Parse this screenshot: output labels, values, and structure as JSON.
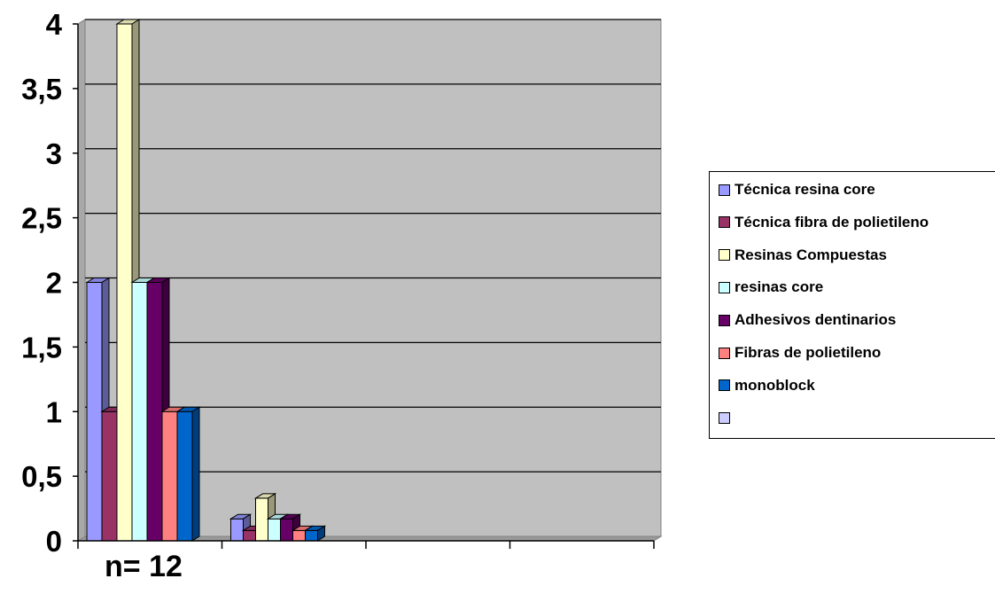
{
  "chart_data": {
    "type": "bar",
    "categories": [
      "",
      "",
      "",
      ""
    ],
    "ylim": [
      0,
      4
    ],
    "yticks": [
      "0",
      "0,5",
      "1",
      "1,5",
      "2",
      "2,5",
      "3",
      "3,5",
      "4"
    ],
    "xlabel": "n= 12",
    "grid": true,
    "legend_position": "right",
    "series": [
      {
        "name": "Técnica resina core",
        "color": "#9999ff",
        "values": [
          2,
          0.17,
          null,
          null
        ]
      },
      {
        "name": "Técnica fibra de polietileno",
        "color": "#993366",
        "values": [
          1,
          0.08,
          null,
          null
        ]
      },
      {
        "name": "Resinas Compuestas",
        "color": "#ffffcc",
        "values": [
          4,
          0.33,
          null,
          null
        ]
      },
      {
        "name": "resinas core",
        "color": "#ccffff",
        "values": [
          2,
          0.17,
          null,
          null
        ]
      },
      {
        "name": "Adhesivos dentinarios",
        "color": "#660066",
        "values": [
          2,
          0.17,
          null,
          null
        ]
      },
      {
        "name": "Fibras de polietileno",
        "color": "#ff8080",
        "values": [
          1,
          0.08,
          null,
          null
        ]
      },
      {
        "name": "monoblock",
        "color": "#0066cc",
        "values": [
          1,
          0.08,
          null,
          null
        ]
      },
      {
        "name": "",
        "color": "#ccccff",
        "values": [
          null,
          null,
          null,
          null
        ]
      }
    ]
  }
}
